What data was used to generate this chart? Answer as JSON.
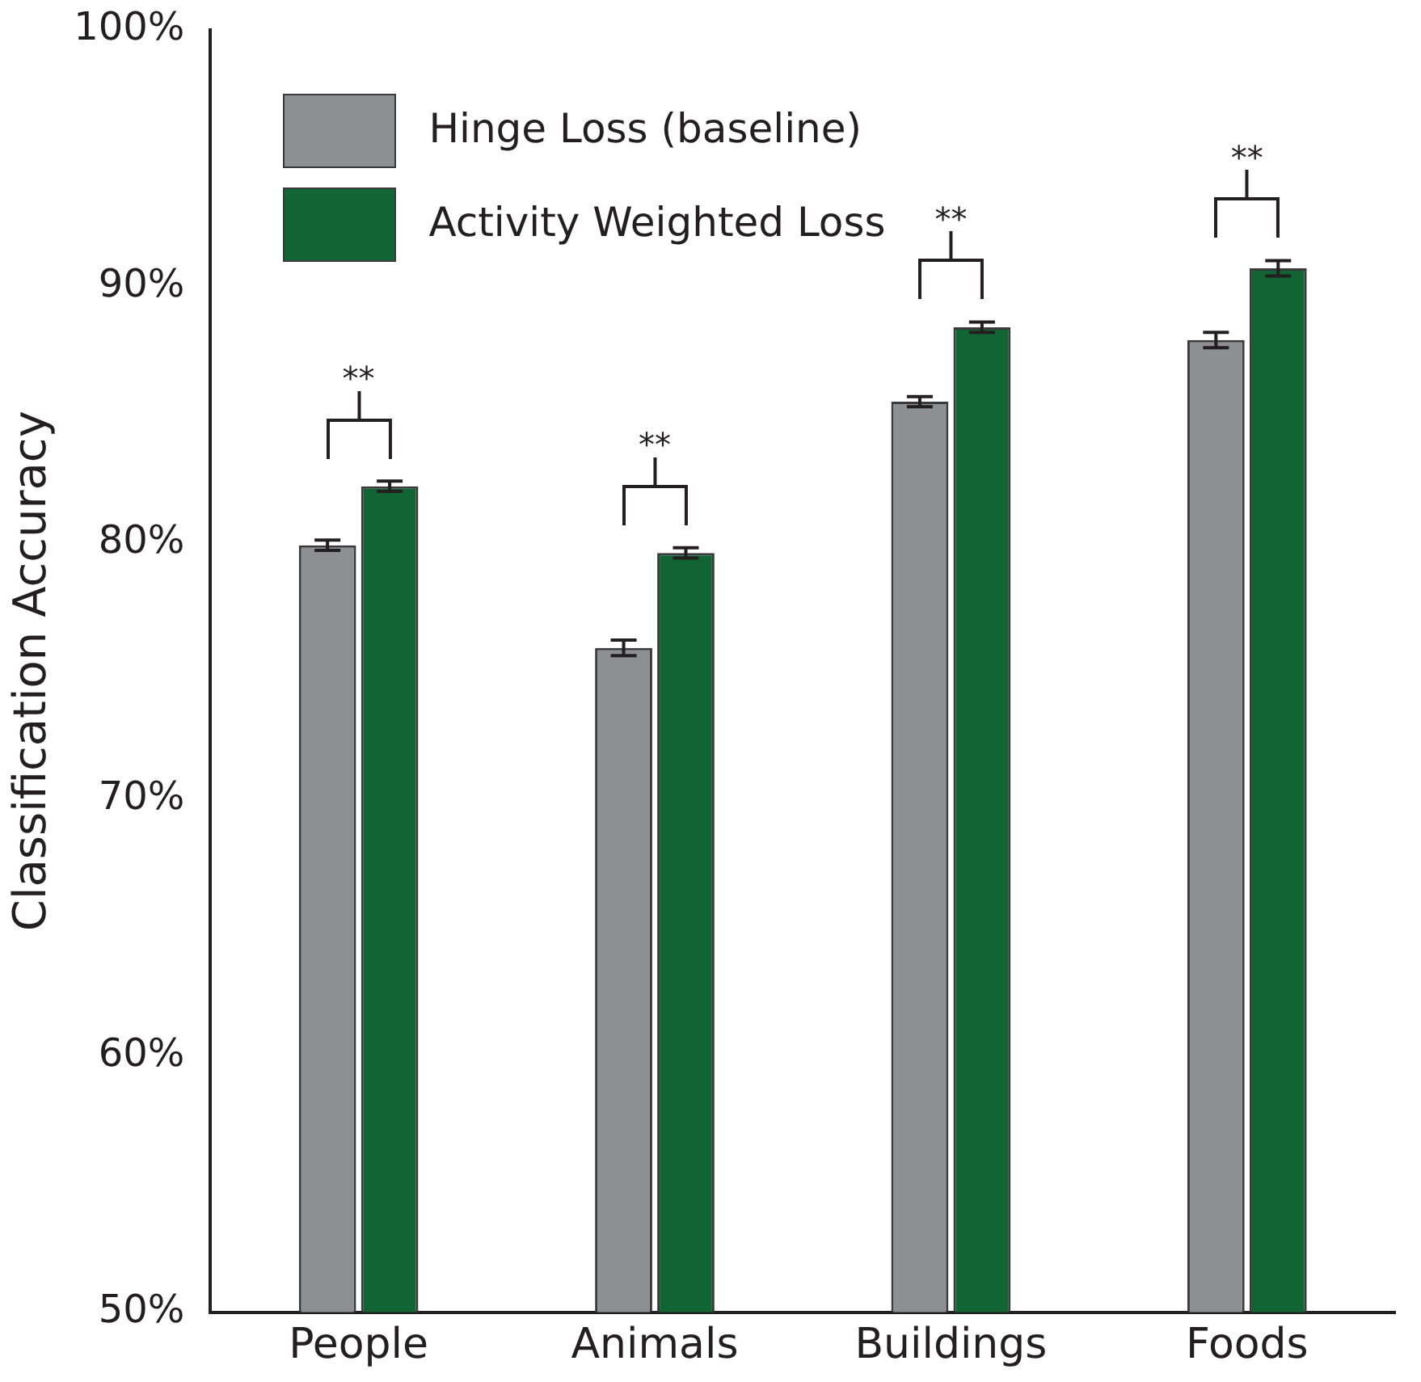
{
  "chart_data": {
    "type": "bar",
    "ylabel": "Classification Accuracy",
    "categories": [
      "People",
      "Animals",
      "Buildings",
      "Foods"
    ],
    "series": [
      {
        "name": "Hinge Loss (baseline)",
        "color": "#8e8f93",
        "values": [
          79.9,
          75.9,
          85.5,
          87.9
        ],
        "errors": [
          0.2,
          0.3,
          0.2,
          0.3
        ]
      },
      {
        "name": "Activity Weighted Loss",
        "color": "#116535",
        "values": [
          82.2,
          79.6,
          88.4,
          90.7
        ],
        "errors": [
          0.2,
          0.2,
          0.2,
          0.3
        ]
      }
    ],
    "ylim": [
      50,
      100
    ],
    "yticks": [
      {
        "value": 50,
        "label": "50%"
      },
      {
        "value": 60,
        "label": "60%"
      },
      {
        "value": 70,
        "label": "70%"
      },
      {
        "value": 80,
        "label": "80%"
      },
      {
        "value": 90,
        "label": "90%"
      },
      {
        "value": 100,
        "label": "100%"
      }
    ],
    "grid": false,
    "legend": "top left",
    "annotations": [
      "**",
      "**",
      "**",
      "**"
    ]
  }
}
